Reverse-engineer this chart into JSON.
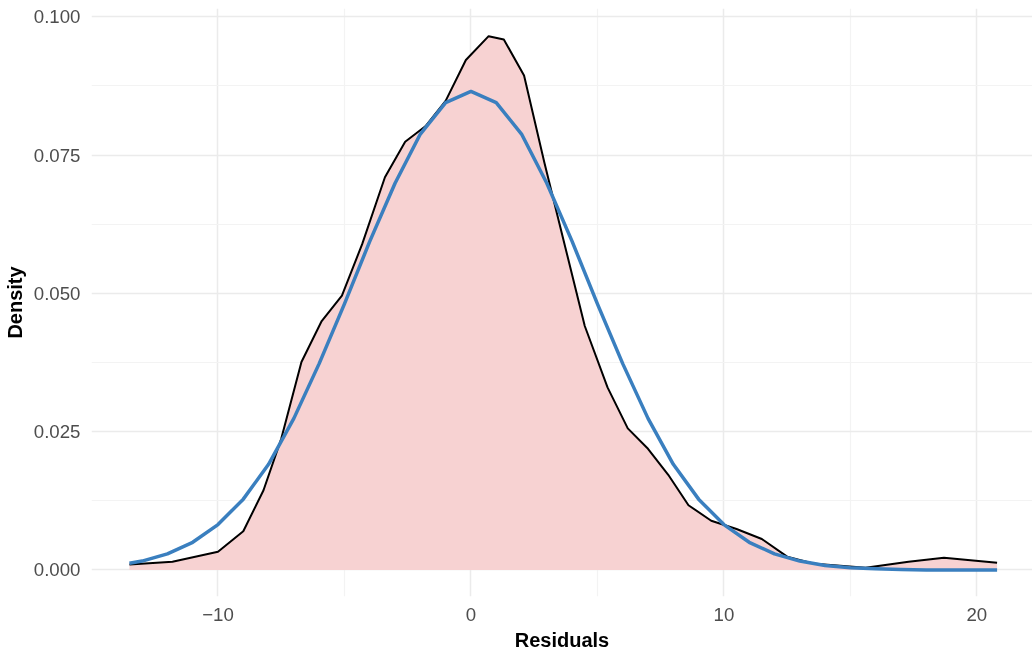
{
  "chart_data": {
    "type": "area",
    "xlabel": "Residuals",
    "ylabel": "Density",
    "series": [
      {
        "color": "#f7d2d2",
        "x": [
          -13.5,
          -11.8,
          -10,
          -9,
          -8.2,
          -7.5,
          -6.7,
          -5.9,
          -5.1,
          -4.3,
          -3.4,
          -2.6,
          -1.8,
          -1.0,
          -0.2,
          0.7,
          1.3,
          2.1,
          2.9,
          3.7,
          4.5,
          5.4,
          6.2,
          7.0,
          7.8,
          8.6,
          9.5,
          10.5,
          11.5,
          12.5,
          13.6,
          15.6,
          17.3,
          18.7,
          20.8
        ],
        "values": [
          0.001,
          0.0015,
          0.0033,
          0.007,
          0.0144,
          0.0237,
          0.0376,
          0.045,
          0.0496,
          0.0589,
          0.071,
          0.0774,
          0.0802,
          0.0848,
          0.0922,
          0.0965,
          0.0959,
          0.0894,
          0.0737,
          0.0589,
          0.0441,
          0.033,
          0.0256,
          0.0219,
          0.0172,
          0.0117,
          0.0089,
          0.0074,
          0.0056,
          0.0024,
          0.0011,
          0.0004,
          0.0015,
          0.0022,
          0.0013
        ]
      },
      {
        "type": "line",
        "color": "#3a7fbf",
        "x": [
          -13.5,
          -13,
          -12,
          -11,
          -10,
          -9,
          -8,
          -7,
          -6,
          -5,
          -4,
          -3,
          -2,
          -1,
          0,
          1,
          2,
          3,
          4,
          5,
          6,
          7,
          8,
          9,
          10,
          11,
          12,
          13,
          14,
          15,
          16,
          17,
          18,
          20.8
        ],
        "values": [
          0.0012,
          0.0016,
          0.0029,
          0.005,
          0.0082,
          0.0128,
          0.0191,
          0.0274,
          0.0373,
          0.0481,
          0.0594,
          0.0699,
          0.0788,
          0.0845,
          0.0865,
          0.0845,
          0.0788,
          0.0699,
          0.0594,
          0.0481,
          0.0373,
          0.0274,
          0.0191,
          0.0128,
          0.0082,
          0.005,
          0.0029,
          0.0016,
          0.0008,
          0.0004,
          0.0002,
          0.0001,
          0.0,
          0.0
        ]
      }
    ],
    "xlim": [
      -15.0,
      22.2
    ],
    "ylim": [
      -0.0048,
      0.1015
    ],
    "xticks": [
      {
        "value": -10,
        "label": "−10"
      },
      0,
      10,
      20
    ],
    "yticks": [
      {
        "value": 0,
        "label": "0.000"
      },
      {
        "value": 0.025,
        "label": "0.025"
      },
      {
        "value": 0.05,
        "label": "0.050"
      },
      {
        "value": 0.075,
        "label": "0.075"
      },
      {
        "value": 0.1,
        "label": "0.100"
      }
    ],
    "grid": true
  }
}
